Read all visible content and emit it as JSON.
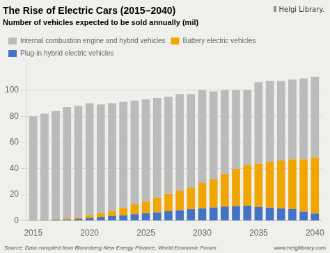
{
  "chart_data": {
    "type": "bar",
    "title": "The Rise of Electric Cars (2015–2040)",
    "subtitle": "Number of vehicles expected to be sold annually (mil)",
    "x": [
      2015,
      2016,
      2017,
      2018,
      2019,
      2020,
      2021,
      2022,
      2023,
      2024,
      2025,
      2026,
      2027,
      2028,
      2029,
      2030,
      2031,
      2032,
      2033,
      2034,
      2035,
      2036,
      2037,
      2038,
      2039,
      2040
    ],
    "xlim": [
      2014.4,
      2040.6
    ],
    "xticks": [
      2015,
      2020,
      2025,
      2030,
      2035,
      2040
    ],
    "ylim": [
      0,
      120
    ],
    "yticks": [
      0,
      20,
      40,
      60,
      80,
      100
    ],
    "stacked": true,
    "grid": true,
    "legend": "upper left",
    "series": [
      {
        "name": "Plug-in hybrid electric vehicles",
        "color": "#4472C4",
        "values": [
          0.3,
          0.5,
          0.7,
          1.0,
          1.5,
          2.0,
          2.8,
          3.5,
          4.2,
          5.0,
          5.8,
          6.5,
          7.2,
          8.0,
          8.8,
          9.5,
          10.2,
          10.8,
          11.2,
          11.5,
          10.5,
          10.0,
          9.5,
          9.0,
          7.0,
          5.5
        ]
      },
      {
        "name": "Battery electric vehicles",
        "color": "#F0A500",
        "values": [
          0.2,
          0.3,
          0.5,
          0.8,
          1.2,
          2.0,
          3.0,
          4.0,
          5.5,
          7.5,
          9.0,
          11.0,
          13.5,
          15.0,
          16.5,
          19.5,
          21.5,
          25.0,
          28.5,
          31.0,
          33.0,
          35.0,
          36.5,
          38.0,
          40.0,
          43.0
        ]
      },
      {
        "name": "Internal combustion engine and hybrid vehicles",
        "color": "#BBBBBB",
        "values": [
          79.5,
          81.2,
          82.8,
          85.2,
          85.3,
          86.0,
          83.2,
          82.5,
          81.3,
          79.5,
          78.2,
          76.5,
          74.3,
          74.0,
          71.7,
          71.0,
          67.3,
          64.2,
          60.3,
          57.5,
          62.5,
          62.0,
          61.0,
          61.0,
          62.0,
          61.5
        ]
      }
    ],
    "annotations": [
      "Ⅱ Helgi Library.",
      "Source: Data compiled from Bloomberg New Energy Finance, World Economic Forum",
      "www.helgilibrary.com"
    ]
  }
}
